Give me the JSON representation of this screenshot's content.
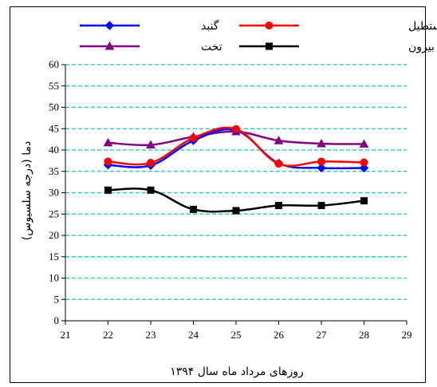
{
  "chart_data": {
    "type": "line",
    "title": "",
    "xlabel": "روزهای مرداد ماه سال ۱۳۹۴",
    "ylabel": "دما (درجه سلسیوس)",
    "xlim": [
      21,
      29
    ],
    "ylim": [
      0,
      60
    ],
    "x_ticks": [
      21,
      22,
      23,
      24,
      25,
      26,
      27,
      28,
      29
    ],
    "y_ticks": [
      0,
      5,
      10,
      15,
      20,
      25,
      30,
      35,
      40,
      45,
      50,
      55,
      60
    ],
    "grid": "horizontal dashed",
    "grid_color": "#33CCCC",
    "legend_position": "top",
    "x": [
      22,
      23,
      24,
      25,
      26,
      27,
      28
    ],
    "series": [
      {
        "name": "گنبد",
        "color": "#0000FF",
        "marker": "diamond",
        "values": [
          36.5,
          36.4,
          42.2,
          44.6,
          36.9,
          35.8,
          35.8
        ]
      },
      {
        "name": "مکعب مستطیل",
        "color": "#FF0000",
        "marker": "circle",
        "values": [
          37.3,
          37.0,
          42.8,
          44.9,
          36.8,
          37.3,
          37.1
        ]
      },
      {
        "name": "تخت",
        "color": "#800080",
        "marker": "triangle",
        "values": [
          41.7,
          41.2,
          43.1,
          44.3,
          42.2,
          41.5,
          41.4
        ]
      },
      {
        "name": "دمای بیرون",
        "color": "#000000",
        "marker": "square",
        "values": [
          30.6,
          30.6,
          26.1,
          25.8,
          27.0,
          27.0,
          28.1
        ]
      }
    ]
  }
}
